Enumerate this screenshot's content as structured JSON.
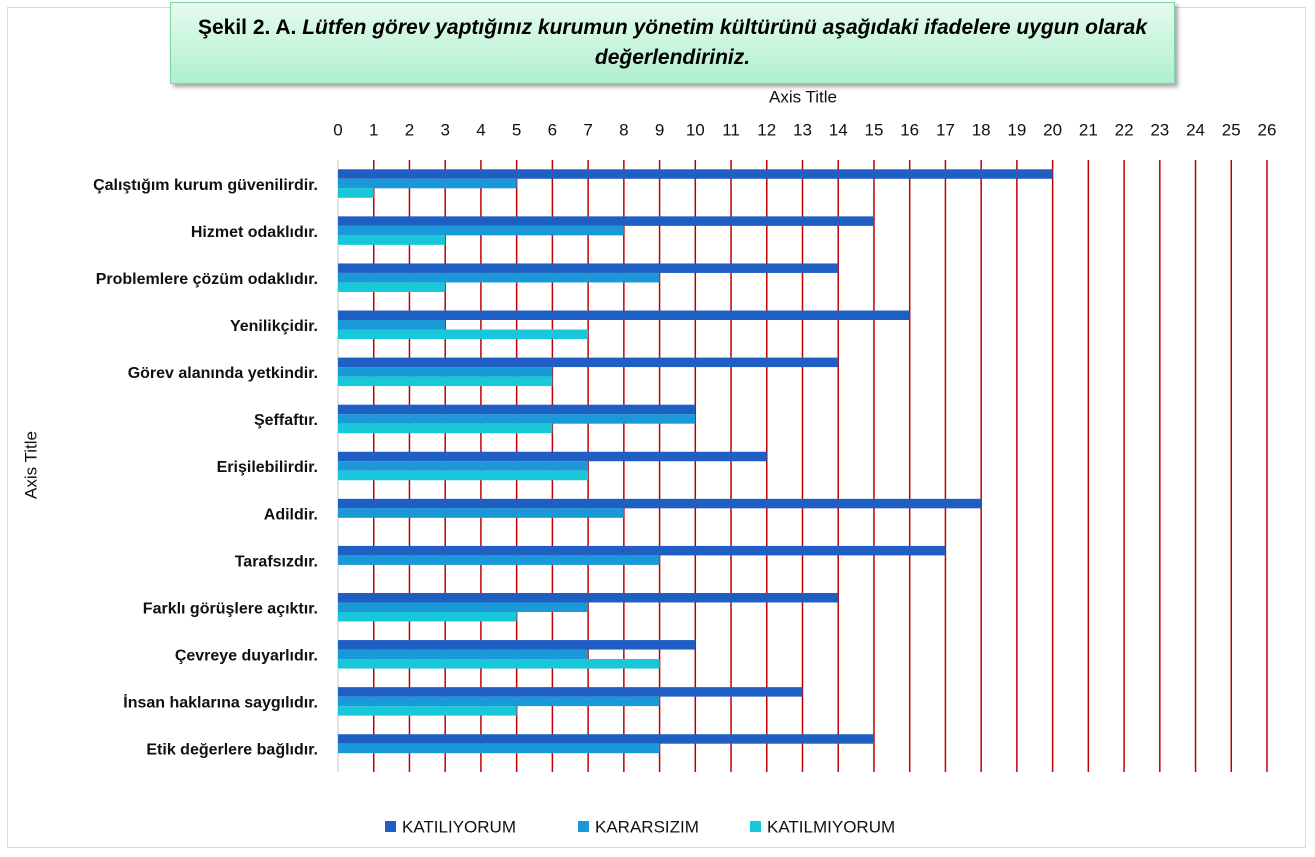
{
  "chart_data": {
    "type": "barh",
    "title_label": "Şekil 2. A.",
    "title": "Lütfen görev yaptığınız kurumun yönetim kültürünü aşağıdaki ifadelere uygun olarak değerlendiriniz.",
    "xlabel": "Axis Title",
    "ylabel": "Axis Title",
    "categories": [
      "Çalıştığım kurum güvenilirdir.",
      "Hizmet odaklıdır.",
      "Problemlere çözüm odaklıdır.",
      "Yenilikçidir.",
      "Görev alanında yetkindir.",
      "Şeffaftır.",
      "Erişilebilirdir.",
      "Adildir.",
      "Tarafsızdır.",
      "Farklı görüşlere açıktır.",
      "Çevreye duyarlıdır.",
      "İnsan haklarına saygılıdır.",
      "Etik değerlere bağlıdır."
    ],
    "series": [
      {
        "name": "KATILIYORUM",
        "color": "#1f5fc4",
        "values": [
          20,
          15,
          14,
          16,
          14,
          10,
          12,
          18,
          17,
          14,
          10,
          13,
          15
        ]
      },
      {
        "name": "KARARSIZIM",
        "color": "#1a98d8",
        "values": [
          5,
          8,
          9,
          3,
          6,
          10,
          7,
          8,
          9,
          7,
          7,
          9,
          9
        ]
      },
      {
        "name": "KATILMIYORUM",
        "color": "#18c8d8",
        "values": [
          1,
          3,
          3,
          7,
          6,
          6,
          7,
          0,
          0,
          5,
          9,
          5,
          0
        ]
      }
    ],
    "xlim": [
      0,
      26
    ],
    "xticks": [
      0,
      1,
      2,
      3,
      4,
      5,
      6,
      7,
      8,
      9,
      10,
      11,
      12,
      13,
      14,
      15,
      16,
      17,
      18,
      19,
      20,
      21,
      22,
      23,
      24,
      25,
      26
    ],
    "grid": true,
    "grid_color": "#c00000",
    "legend": "bottom"
  }
}
